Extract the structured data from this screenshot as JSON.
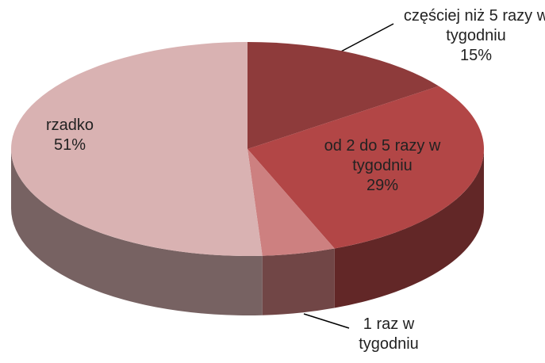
{
  "chart_data": {
    "type": "pie3d",
    "categories": [
      "częściej niż 5 razy w tygodniu",
      "od 2 do 5 razy w tygodniu",
      "1 raz w tygodniu",
      "rzadko"
    ],
    "values": [
      15,
      29,
      5,
      51
    ],
    "value_labels": [
      "15%",
      "29%",
      null,
      "51%"
    ],
    "colors": [
      "#8e3b3b",
      "#b24646",
      "#cd8080",
      "#d9b2b2"
    ]
  }
}
